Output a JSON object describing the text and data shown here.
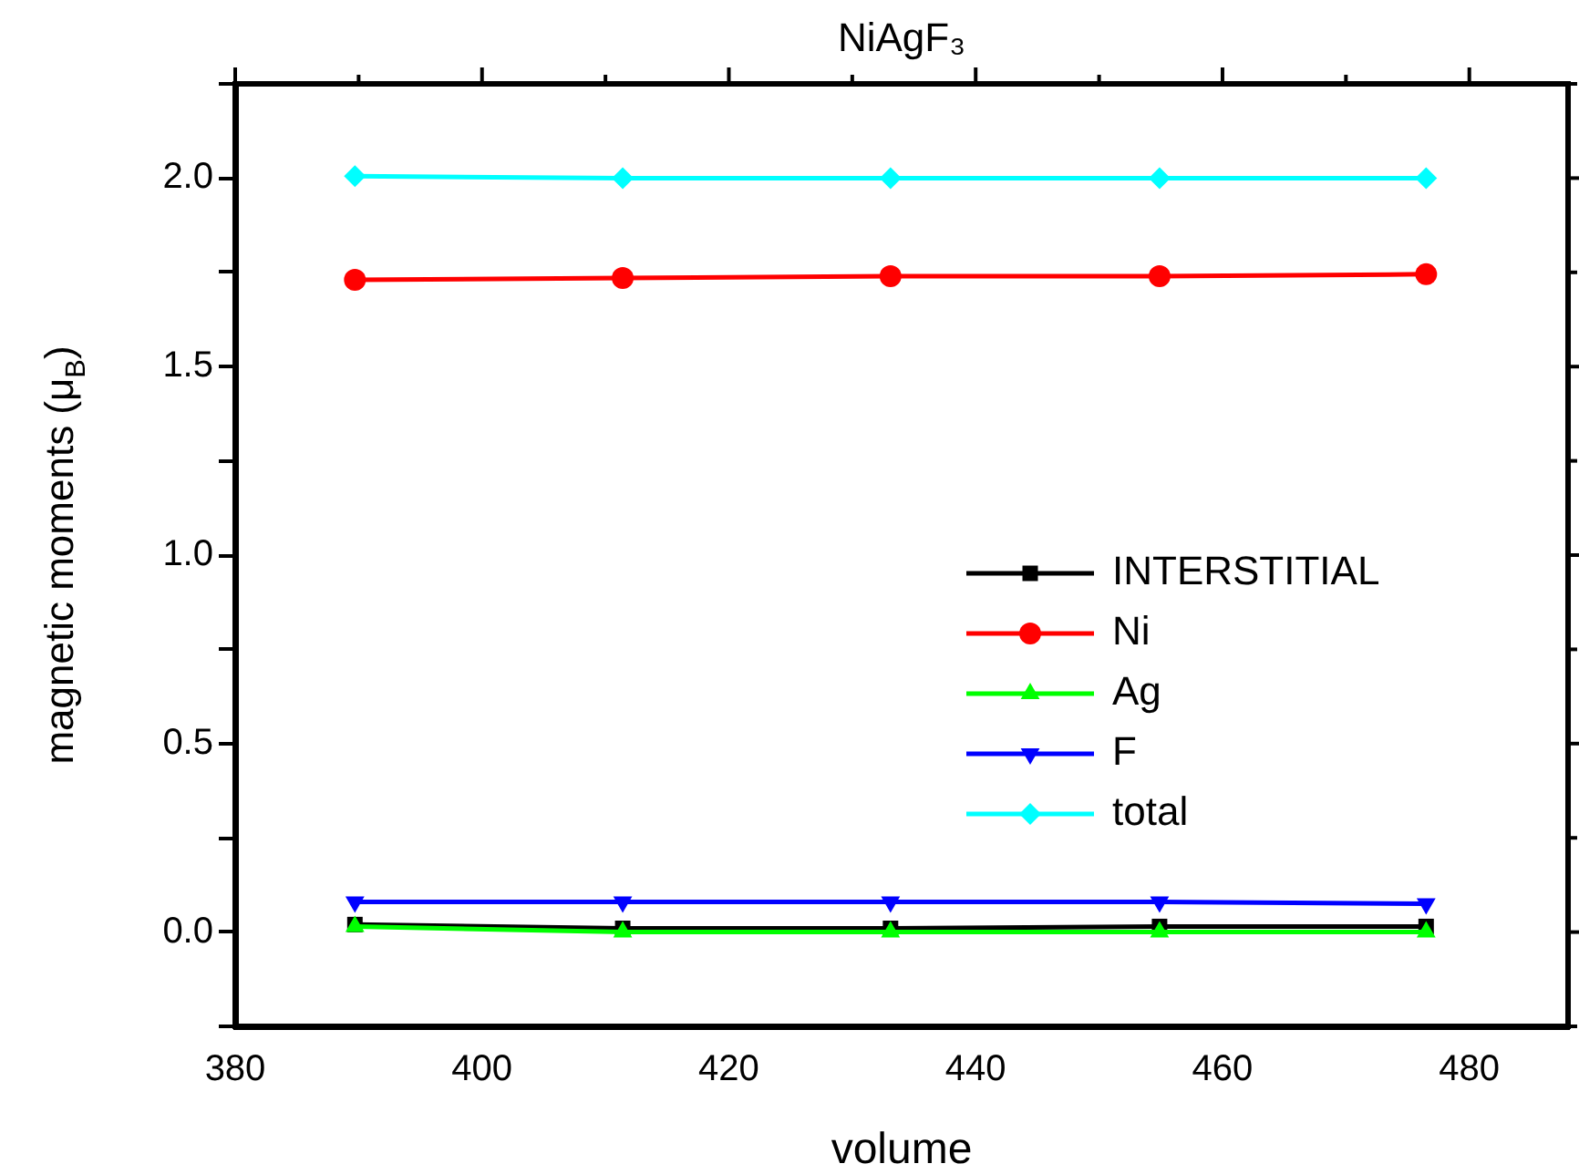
{
  "chart_data": {
    "type": "line",
    "title": "NiAgF₃",
    "xlabel": "volume",
    "ylabel": "magnetic moments (μ$_{B}$)",
    "x": [
      389.7,
      411.4,
      433.1,
      454.9,
      476.5
    ],
    "series": [
      {
        "name": "INTERSTITIAL",
        "color": "#000000",
        "marker": "square",
        "values": [
          0.02,
          0.01,
          0.01,
          0.015,
          0.015
        ]
      },
      {
        "name": "Ni",
        "color": "#ff0000",
        "marker": "circle",
        "values": [
          1.73,
          1.735,
          1.74,
          1.74,
          1.745
        ]
      },
      {
        "name": "Ag",
        "color": "#00ff00",
        "marker": "triangle",
        "values": [
          0.015,
          0.0,
          0.0,
          0.0,
          0.0
        ]
      },
      {
        "name": "F",
        "color": "#0000ff",
        "marker": "triangle-down",
        "values": [
          0.08,
          0.08,
          0.08,
          0.08,
          0.075
        ]
      },
      {
        "name": "total",
        "color": "#00ffff",
        "marker": "diamond",
        "values": [
          2.005,
          2.0,
          2.0,
          2.0,
          2.0
        ]
      }
    ],
    "xlim": [
      380,
      488
    ],
    "xticks": [
      380,
      {
        "value": 390,
        "label": null
      },
      400,
      {
        "value": 410,
        "label": null
      },
      420,
      {
        "value": 430,
        "label": null
      },
      440,
      {
        "value": 450,
        "label": null
      },
      460,
      {
        "value": 470,
        "label": null
      },
      480
    ],
    "ylim": [
      -0.25,
      2.25
    ],
    "yticks": [
      {
        "value": -0.25,
        "label": null
      },
      "0.0",
      {
        "value": 0.25,
        "label": null
      },
      {
        "value": 0.5,
        "label": "0.5"
      },
      {
        "value": 0.75,
        "label": null
      },
      {
        "value": 1.0,
        "label": "1.0"
      },
      {
        "value": 1.25,
        "label": null
      },
      {
        "value": 1.5,
        "label": "1.5"
      },
      {
        "value": 1.75,
        "label": null
      },
      {
        "value": 2.0,
        "label": "2.0"
      },
      {
        "value": 2.25,
        "label": null
      }
    ],
    "grid": false,
    "legend": "right",
    "line_style": "solid"
  }
}
